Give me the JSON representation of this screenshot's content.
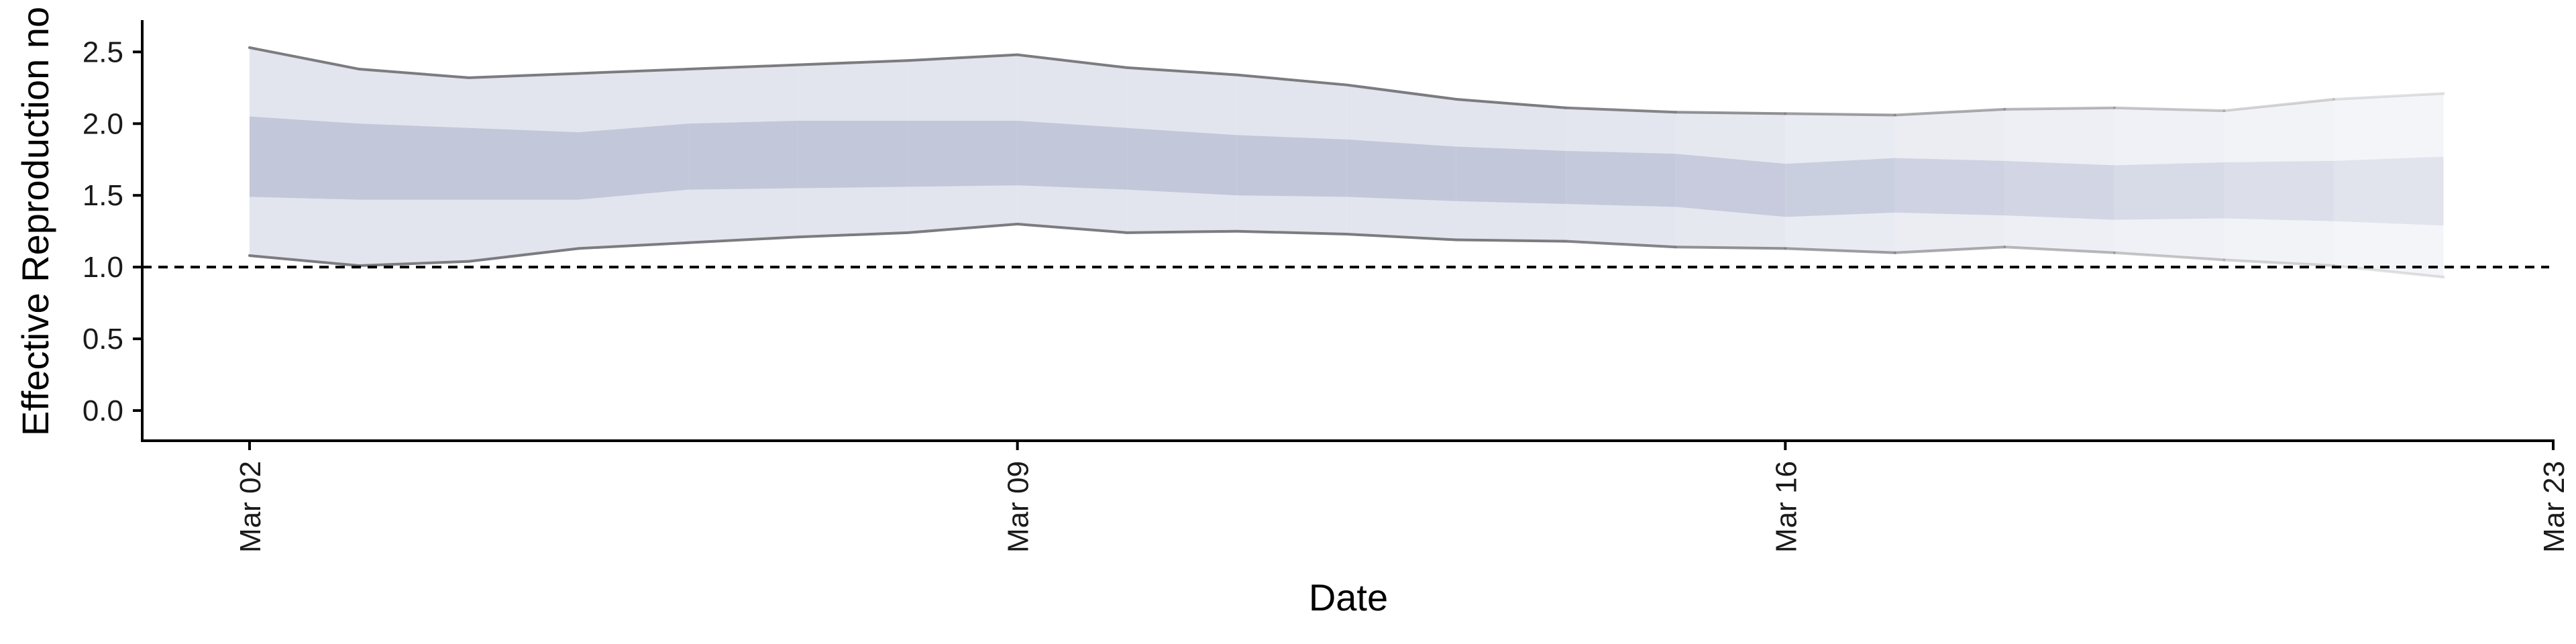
{
  "colors": {
    "outer_band": "#e2e5ee",
    "inner_band": "#c2c7da",
    "bound_line": "#7c7c80",
    "reference_line": "#000000",
    "axis": "#000000",
    "text": "#1a1a1a"
  },
  "chart_data": {
    "type": "area",
    "xlabel": "Date",
    "ylabel": "Effective Reproduction no",
    "xlim": [
      "2020-03-02",
      "2020-03-23"
    ],
    "ylim": [
      0,
      2.6
    ],
    "x_ticks": [
      "Mar 02",
      "Mar 09",
      "Mar 16",
      "Mar 23"
    ],
    "y_ticks": [
      "0.0",
      "0.5",
      "1.0",
      "1.5",
      "2.0",
      "2.5"
    ],
    "reference_line": {
      "y": 1.0,
      "style": "dashed"
    },
    "grid": false,
    "x": [
      "2020-03-02",
      "2020-03-03",
      "2020-03-04",
      "2020-03-05",
      "2020-03-06",
      "2020-03-07",
      "2020-03-08",
      "2020-03-09",
      "2020-03-10",
      "2020-03-11",
      "2020-03-12",
      "2020-03-13",
      "2020-03-14",
      "2020-03-15",
      "2020-03-16",
      "2020-03-17",
      "2020-03-18",
      "2020-03-19",
      "2020-03-20",
      "2020-03-21",
      "2020-03-22"
    ],
    "series": [
      {
        "role": "outer interval upper bound",
        "values": [
          2.53,
          2.38,
          2.32,
          2.35,
          2.38,
          2.41,
          2.44,
          2.48,
          2.39,
          2.34,
          2.27,
          2.17,
          2.11,
          2.08,
          2.07,
          2.06,
          2.1,
          2.11,
          2.09,
          2.17,
          2.21
        ]
      },
      {
        "role": "outer interval lower bound",
        "values": [
          1.08,
          1.01,
          1.04,
          1.13,
          1.17,
          1.21,
          1.24,
          1.3,
          1.24,
          1.25,
          1.23,
          1.19,
          1.18,
          1.14,
          1.13,
          1.1,
          1.14,
          1.1,
          1.05,
          1.01,
          0.93
        ]
      },
      {
        "role": "inner interval upper bound",
        "values": [
          2.05,
          2.0,
          1.97,
          1.94,
          2.0,
          2.02,
          2.02,
          2.02,
          1.97,
          1.92,
          1.89,
          1.84,
          1.81,
          1.79,
          1.72,
          1.76,
          1.74,
          1.71,
          1.73,
          1.74,
          1.77
        ]
      },
      {
        "role": "inner interval lower bound",
        "values": [
          1.49,
          1.47,
          1.47,
          1.47,
          1.54,
          1.55,
          1.56,
          1.57,
          1.54,
          1.5,
          1.49,
          1.46,
          1.44,
          1.42,
          1.35,
          1.38,
          1.36,
          1.33,
          1.34,
          1.32,
          1.29
        ]
      }
    ]
  }
}
